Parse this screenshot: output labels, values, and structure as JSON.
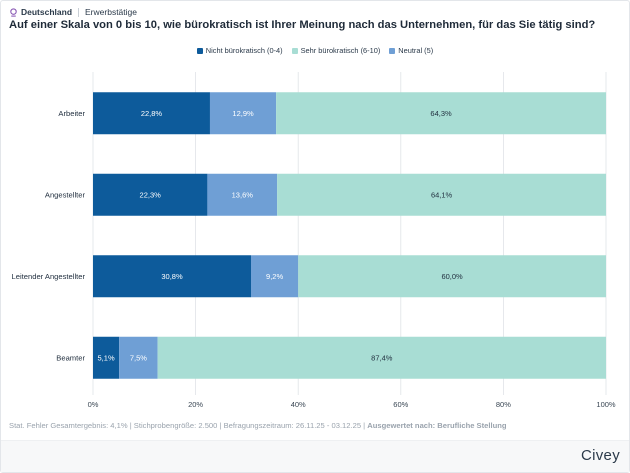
{
  "breadcrumbs": [
    "Deutschland",
    "Erwerbstätige"
  ],
  "brand": "Civey",
  "footer": {
    "text": "Stat. Fehler Gesamtergebnis: 4,1% | Stichprobengröße: 2.500 | Befragungszeitraum: 26.11.25 - 03.12.25 | ",
    "bold": "Ausgewertet nach: Berufliche Stellung"
  },
  "chart_data": {
    "type": "bar",
    "orientation": "horizontal",
    "stacked": true,
    "title": "Auf einer Skala von 0 bis 10, wie bürokratisch ist Ihrer Meinung nach das Unternehmen, für das Sie tätig sind?",
    "categories": [
      "Arbeiter",
      "Angestellter",
      "Leitender Angestellter",
      "Beamter"
    ],
    "series": [
      {
        "name": "Nicht bürokratisch (0-4)",
        "color": "#0d5b9b",
        "values": [
          22.8,
          22.3,
          30.8,
          5.1
        ],
        "labels": [
          "22,8%",
          "22,3%",
          "30,8%",
          "5,1%"
        ]
      },
      {
        "name": "Neutral (5)",
        "color": "#6f9fd5",
        "values": [
          12.9,
          13.6,
          9.2,
          7.5
        ],
        "labels": [
          "12,9%",
          "13,6%",
          "9,2%",
          "7,5%"
        ]
      },
      {
        "name": "Sehr bürokratisch (6-10)",
        "color": "#a8ddd4",
        "values": [
          64.3,
          64.1,
          60.0,
          87.4
        ],
        "labels": [
          "64,3%",
          "64,1%",
          "60,0%",
          "87,4%"
        ]
      }
    ],
    "legend_order": [
      "Nicht bürokratisch (0-4)",
      "Sehr bürokratisch (6-10)",
      "Neutral (5)"
    ],
    "legend_position": "top-center",
    "xlim": [
      0,
      100
    ],
    "xticks": [
      0,
      20,
      40,
      60,
      80,
      100
    ],
    "xtick_labels": [
      "0%",
      "20%",
      "40%",
      "60%",
      "80%",
      "100%"
    ],
    "grid": true
  }
}
